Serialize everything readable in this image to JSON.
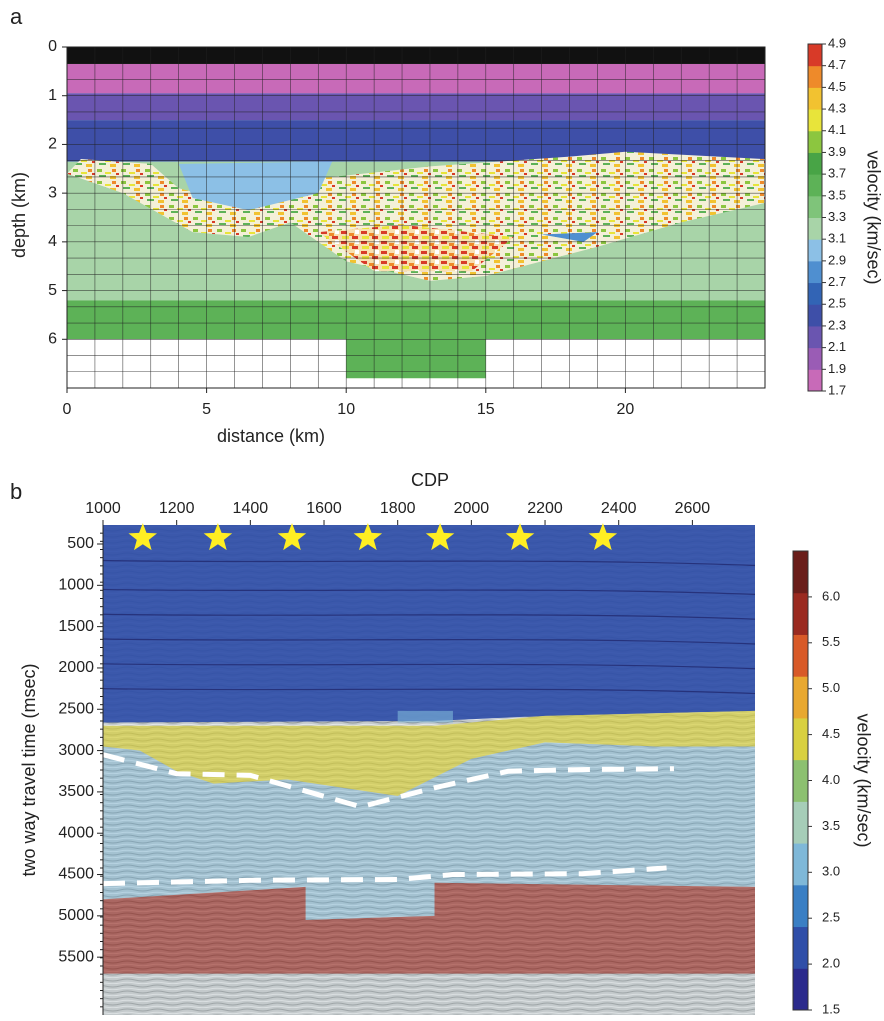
{
  "chart_data": [
    {
      "type": "heatmap",
      "panel_label": "a",
      "xlabel": "distance (km)",
      "ylabel": "depth (km)",
      "xlim": [
        0,
        25
      ],
      "xticks": [
        0,
        5,
        10,
        15,
        20
      ],
      "ylim": [
        0,
        7
      ],
      "yticks": [
        0,
        1,
        2,
        3,
        4,
        5,
        6
      ],
      "colorbar": {
        "label": "velocity (km/sec)",
        "lim": [
          1.7,
          4.9
        ],
        "ticks": [
          1.7,
          1.9,
          2.1,
          2.3,
          2.5,
          2.7,
          2.9,
          3.1,
          3.3,
          3.5,
          3.7,
          3.9,
          4.1,
          4.3,
          4.5,
          4.7,
          4.9
        ],
        "colors": [
          "#c86ab8",
          "#9a5cb5",
          "#6a55b0",
          "#3e4fa8",
          "#3264b5",
          "#4f8fd0",
          "#8cc0e6",
          "#a8d4a8",
          "#7fc47a",
          "#5db257",
          "#48a446",
          "#8cc63f",
          "#e8e43a",
          "#f2c230",
          "#ee8a2a",
          "#d83a28"
        ]
      }
    },
    {
      "type": "heatmap",
      "panel_label": "b",
      "xlabel": "CDP",
      "ylabel": "two way travel time (msec)",
      "xlim": [
        1000,
        2770
      ],
      "xticks": [
        1000,
        1200,
        1400,
        1600,
        1800,
        2000,
        2200,
        2400,
        2600
      ],
      "ylim": [
        270,
        6200
      ],
      "yticks": [
        500,
        1000,
        1500,
        2000,
        2500,
        3000,
        3500,
        4000,
        4500,
        5000,
        5500
      ],
      "stars": [
        1108,
        1312,
        1513,
        1719,
        1915,
        2132,
        2357
      ],
      "colorbar": {
        "label": "velocity (km/sec)",
        "lim": [
          1.5,
          6.5
        ],
        "ticks": [
          1.5,
          {
            "value": 2,
            "label": "2.0"
          },
          2.5,
          {
            "value": 3,
            "label": "3.0"
          },
          3.5,
          {
            "value": 4,
            "label": "4.0"
          },
          4.5,
          {
            "value": 5,
            "label": "5.0"
          },
          5.5,
          {
            "value": 6,
            "label": "6.0"
          }
        ],
        "colors": [
          "#2b2a8c",
          "#2f4ea8",
          "#3a7fc4",
          "#7fb8d8",
          "#a6cdb8",
          "#8cc070",
          "#d8d040",
          "#e8a830",
          "#d85a28",
          "#9a2a20",
          "#6a1e1a"
        ]
      }
    }
  ]
}
